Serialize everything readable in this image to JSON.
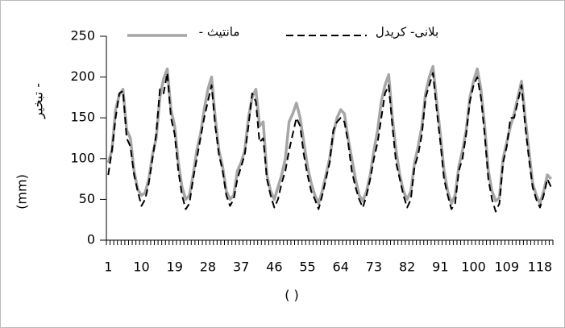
{
  "chart_data": {
    "type": "line",
    "ylabel": "تبخیر -",
    "ylabel_unit": "(mm)",
    "xlabel": "( )",
    "categories": [
      1,
      null,
      null,
      null,
      null,
      null,
      null,
      null,
      null,
      10,
      null,
      null,
      null,
      null,
      null,
      null,
      null,
      null,
      19,
      null,
      null,
      null,
      null,
      null,
      null,
      null,
      null,
      28,
      null,
      null,
      null,
      null,
      null,
      null,
      null,
      null,
      37,
      null,
      null,
      null,
      null,
      null,
      null,
      null,
      null,
      46,
      null,
      null,
      null,
      null,
      null,
      null,
      null,
      null,
      55,
      null,
      null,
      null,
      null,
      null,
      null,
      null,
      null,
      64,
      null,
      null,
      null,
      null,
      null,
      null,
      null,
      null,
      73,
      null,
      null,
      null,
      null,
      null,
      null,
      null,
      null,
      82,
      null,
      null,
      null,
      null,
      null,
      null,
      null,
      null,
      91,
      null,
      null,
      null,
      null,
      null,
      null,
      null,
      null,
      100,
      null,
      null,
      null,
      null,
      null,
      null,
      null,
      null,
      109,
      null,
      null,
      null,
      null,
      null,
      null,
      null,
      null,
      118,
      null,
      null,
      null
    ],
    "series": [
      {
        "name": "- مانتیث",
        "color": "#a6a6a6",
        "dashed": false,
        "values": [
          95,
          110,
          160,
          178,
          185,
          135,
          125,
          85,
          62,
          55,
          58,
          75,
          105,
          125,
          175,
          198,
          210,
          160,
          140,
          95,
          65,
          50,
          55,
          80,
          110,
          130,
          160,
          185,
          200,
          150,
          110,
          90,
          60,
          50,
          55,
          85,
          95,
          110,
          150,
          175,
          185,
          140,
          145,
          80,
          60,
          50,
          65,
          80,
          100,
          145,
          155,
          168,
          150,
          120,
          90,
          70,
          55,
          45,
          60,
          80,
          100,
          130,
          150,
          160,
          155,
          125,
          100,
          75,
          55,
          48,
          60,
          80,
          110,
          135,
          170,
          190,
          203,
          150,
          110,
          80,
          60,
          50,
          60,
          95,
          115,
          140,
          180,
          200,
          213,
          170,
          130,
          85,
          60,
          45,
          55,
          90,
          110,
          135,
          175,
          195,
          210,
          185,
          140,
          85,
          60,
          48,
          52,
          100,
          120,
          140,
          155,
          175,
          195,
          150,
          110,
          70,
          55,
          45,
          60,
          80,
          75
        ]
      },
      {
        "name": "بلانی- کریدل",
        "color": "#000000",
        "dashed": true,
        "values": [
          80,
          110,
          150,
          180,
          183,
          125,
          115,
          80,
          60,
          42,
          50,
          70,
          100,
          130,
          185,
          180,
          205,
          150,
          130,
          85,
          55,
          38,
          45,
          75,
          100,
          125,
          150,
          170,
          190,
          140,
          105,
          85,
          55,
          42,
          50,
          75,
          90,
          105,
          140,
          180,
          170,
          120,
          125,
          75,
          55,
          40,
          50,
          70,
          85,
          110,
          130,
          150,
          140,
          105,
          80,
          60,
          50,
          38,
          55,
          75,
          95,
          135,
          145,
          150,
          145,
          120,
          85,
          65,
          50,
          40,
          55,
          75,
          100,
          120,
          150,
          180,
          190,
          140,
          95,
          75,
          55,
          40,
          50,
          90,
          105,
          130,
          175,
          190,
          205,
          160,
          120,
          75,
          55,
          38,
          45,
          85,
          100,
          130,
          170,
          190,
          200,
          175,
          130,
          75,
          50,
          35,
          45,
          95,
          115,
          150,
          150,
          170,
          190,
          140,
          100,
          65,
          50,
          40,
          55,
          75,
          65
        ]
      }
    ],
    "ylim": [
      0,
      250
    ],
    "yticks": [
      0,
      50,
      100,
      150,
      200,
      250
    ],
    "grid": false
  }
}
